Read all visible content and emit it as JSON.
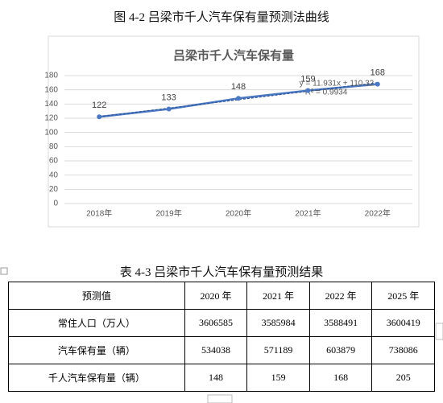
{
  "figure_caption": "图 4-2 吕梁市千人汽车保有量预测法曲线",
  "chart_data": {
    "type": "line",
    "title": "吕梁市千人汽车保有量",
    "categories": [
      "2018年",
      "2019年",
      "2020年",
      "2021年",
      "2022年"
    ],
    "values": [
      122,
      133,
      148,
      159,
      168
    ],
    "color": "#4a78c2",
    "ylim": [
      0,
      180
    ],
    "yticks": [
      0,
      20,
      40,
      60,
      80,
      100,
      120,
      140,
      160,
      180
    ],
    "grid": true,
    "trendline": {
      "slope": 11.931,
      "intercept": 110.32,
      "equation": "y = 11.931x + 110.32",
      "r_squared": "R² = 0.9934"
    }
  },
  "table": {
    "caption": "表 4-3 吕梁市千人汽车保有量预测结果",
    "header": [
      "预测值",
      "2020 年",
      "2021 年",
      "2022 年",
      "2025 年"
    ],
    "rows": [
      [
        "常住人口（万人）",
        3606585,
        3585984,
        3588491,
        3600419
      ],
      [
        "汽车保有量（辆）",
        534038,
        571189,
        603879,
        738086
      ],
      [
        "千人汽车保有量（辆）",
        148,
        159,
        168,
        205
      ]
    ]
  }
}
